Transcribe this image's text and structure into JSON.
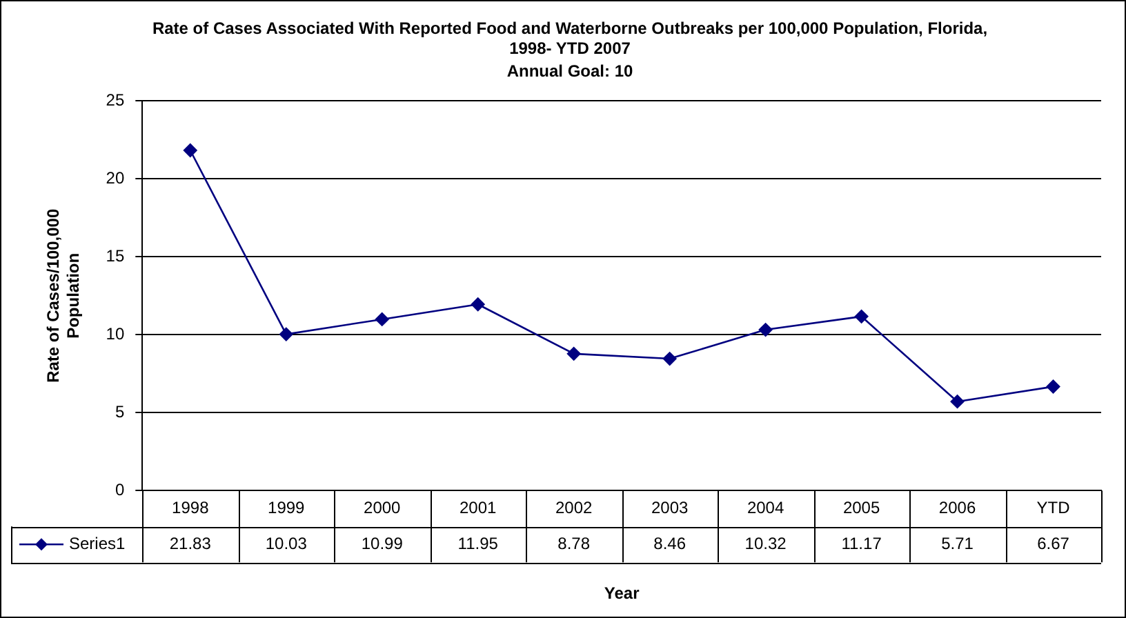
{
  "chart_data": {
    "type": "line",
    "title": "Rate of Cases Associated With Reported Food and Waterborne Outbreaks per 100,000 Population, Florida, 1998- YTD 2007",
    "subtitle": "Annual Goal: 10",
    "xlabel": "Year",
    "ylabel": "Rate of Cases/100,000 Population",
    "categories": [
      "1998",
      "1999",
      "2000",
      "2001",
      "2002",
      "2003",
      "2004",
      "2005",
      "2006",
      "YTD"
    ],
    "series": [
      {
        "name": "Series1",
        "color": "#000080",
        "values": [
          21.83,
          10.03,
          10.99,
          11.95,
          8.78,
          8.46,
          10.32,
          11.17,
          5.71,
          6.67
        ]
      }
    ],
    "ylim": [
      0,
      25
    ],
    "yticks": [
      0,
      5,
      10,
      15,
      20,
      25
    ],
    "grid": "y",
    "marker": "diamond",
    "line_style": "solid",
    "data_labels": true
  }
}
